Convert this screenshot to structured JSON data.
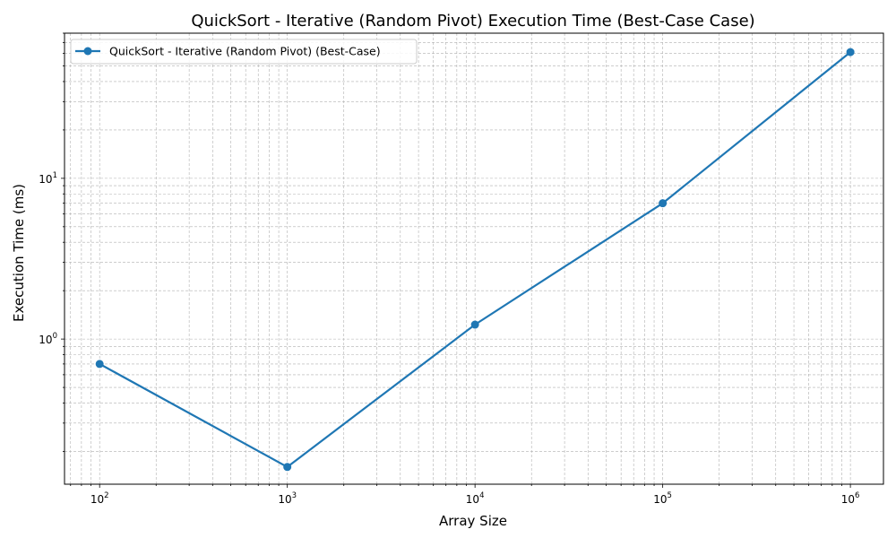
{
  "chart_data": {
    "type": "line",
    "title": "QuickSort - Iterative (Random Pivot) Execution Time (Best-Case Case)",
    "xlabel": "Array Size",
    "ylabel": "Execution Time (ms)",
    "x_scale": "log",
    "y_scale": "log",
    "xlim": [
      65,
      1500000
    ],
    "ylim": [
      0.125,
      80
    ],
    "grid": true,
    "legend_position": "top-left",
    "x_ticks": [
      {
        "base": "10",
        "exp": "2",
        "value": 100
      },
      {
        "base": "10",
        "exp": "3",
        "value": 1000
      },
      {
        "base": "10",
        "exp": "4",
        "value": 10000
      },
      {
        "base": "10",
        "exp": "5",
        "value": 100000
      },
      {
        "base": "10",
        "exp": "6",
        "value": 1000000
      }
    ],
    "y_ticks": [
      {
        "base": "10",
        "exp": "0",
        "value": 1
      },
      {
        "base": "10",
        "exp": "1",
        "value": 10
      }
    ],
    "series": [
      {
        "name": "QuickSort - Iterative (Random Pivot) (Best-Case)",
        "color": "#1f77b4",
        "x": [
          100,
          1000,
          10000,
          100000,
          1000000
        ],
        "y": [
          0.7,
          0.16,
          1.23,
          7.0,
          61.0
        ]
      }
    ]
  }
}
